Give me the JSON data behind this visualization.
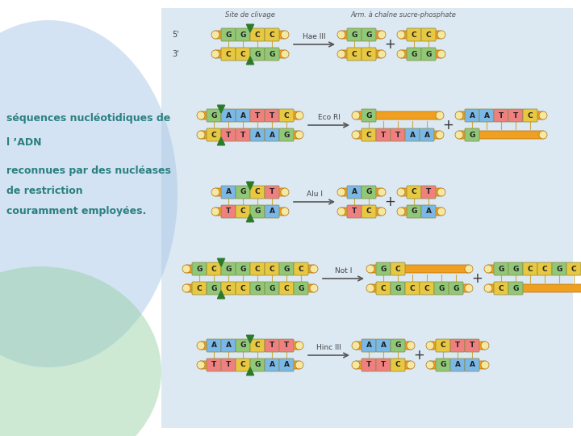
{
  "text_color": "#2a8080",
  "text_lines": [
    "séquences nucléotidiques de",
    "l ’ADN",
    "reconnues par des nucléases",
    "de restriction",
    "couramment employées."
  ],
  "orange": "#f0a020",
  "nuc_colors": {
    "A": "#7ab8e8",
    "T": "#f08080",
    "G": "#90c878",
    "C": "#e8c840"
  },
  "rows": [
    {
      "enzyme": "Hae III",
      "top": [
        "G",
        "G",
        "C",
        "C"
      ],
      "bot": [
        "C",
        "C",
        "G",
        "G"
      ],
      "cut_idx": 2,
      "p1_top": [
        "G",
        "G"
      ],
      "p1_bot": [
        "C",
        "C"
      ],
      "p2_top": [
        "C",
        "C"
      ],
      "p2_bot": [
        "G",
        "G"
      ]
    },
    {
      "enzyme": "Eco RI",
      "top": [
        "G",
        "A",
        "A",
        "T",
        "T",
        "C"
      ],
      "bot": [
        "C",
        "T",
        "T",
        "A",
        "A",
        "G"
      ],
      "cut_idx": 1,
      "p1_top": [
        "G"
      ],
      "p1_bot": [
        "C",
        "T",
        "T",
        "A",
        "A"
      ],
      "p2_top": [
        "A",
        "A",
        "T",
        "T",
        "C"
      ],
      "p2_bot": [
        "G"
      ]
    },
    {
      "enzyme": "Alu I",
      "top": [
        "A",
        "G",
        "C",
        "T"
      ],
      "bot": [
        "T",
        "C",
        "G",
        "A"
      ],
      "cut_idx": 2,
      "p1_top": [
        "A",
        "G"
      ],
      "p1_bot": [
        "T",
        "C"
      ],
      "p2_top": [
        "C",
        "T"
      ],
      "p2_bot": [
        "G",
        "A"
      ]
    },
    {
      "enzyme": "Not I",
      "top": [
        "G",
        "C",
        "G",
        "G",
        "C",
        "C",
        "G",
        "C"
      ],
      "bot": [
        "C",
        "G",
        "C",
        "C",
        "G",
        "G",
        "C",
        "G"
      ],
      "cut_idx": 2,
      "p1_top": [
        "G",
        "C"
      ],
      "p1_bot": [
        "C",
        "G",
        "C",
        "C",
        "G",
        "G"
      ],
      "p2_top": [
        "G",
        "G",
        "C",
        "C",
        "G",
        "C"
      ],
      "p2_bot": [
        "C",
        "G"
      ]
    },
    {
      "enzyme": "Hinc III",
      "top": [
        "A",
        "A",
        "G",
        "C",
        "T",
        "T"
      ],
      "bot": [
        "T",
        "T",
        "C",
        "G",
        "A",
        "A"
      ],
      "cut_idx": 3,
      "p1_top": [
        "A",
        "A",
        "G"
      ],
      "p1_bot": [
        "T",
        "T",
        "C"
      ],
      "p2_top": [
        "C",
        "T",
        "T"
      ],
      "p2_bot": [
        "G",
        "A",
        "A"
      ]
    }
  ],
  "note1": "Site de clivage",
  "note2": "Arm. à chaîne sucre-phosphate"
}
